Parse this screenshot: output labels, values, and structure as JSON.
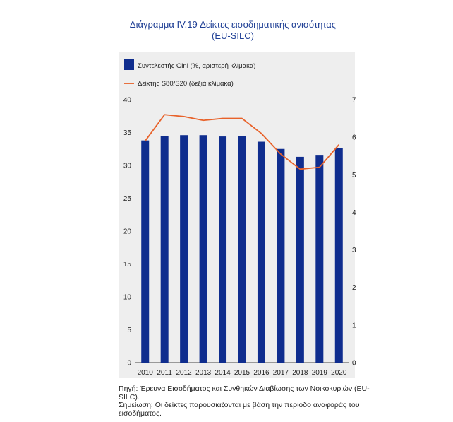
{
  "title": {
    "line1": "Διάγραμμα IV.19 Δείκτες εισοδηματικής ανισότητας",
    "line2": "(EU-SILC)"
  },
  "chart_data": {
    "type": "bar",
    "categories": [
      "2010",
      "2011",
      "2012",
      "2013",
      "2014",
      "2015",
      "2016",
      "2017",
      "2018",
      "2019",
      "2020"
    ],
    "series": [
      {
        "name": "Συντελεστής Gini (%, αριστερή κλίμακα)",
        "type": "bar",
        "axis": "left",
        "color": "#0f2d8e",
        "values": [
          33.8,
          34.5,
          34.6,
          34.6,
          34.4,
          34.5,
          33.6,
          32.5,
          31.3,
          31.6,
          32.6
        ]
      },
      {
        "name": "Δείκτης S80/S20 (δεξιά κλίμακα)",
        "type": "line",
        "axis": "right",
        "color": "#e8622a",
        "values": [
          5.9,
          6.6,
          6.55,
          6.45,
          6.5,
          6.5,
          6.1,
          5.55,
          5.15,
          5.2,
          5.8
        ]
      }
    ],
    "y_left": {
      "min": 0,
      "max": 40,
      "ticks": [
        "0",
        "5",
        "10",
        "15",
        "20",
        "25",
        "30",
        "35",
        "40"
      ]
    },
    "y_right": {
      "min": 0,
      "max": 7,
      "ticks": [
        "0",
        "1",
        "2",
        "3",
        "4",
        "5",
        "6",
        "7"
      ]
    },
    "legend": "top-left"
  },
  "notes": {
    "source": "Πηγή: Έρευνα Εισοδήματος και Συνθηκών Διαβίωσης των Νοικοκυριών (EU-SILC).",
    "note": "Σημείωση: Οι δείκτες παρουσιάζονται με βάση την περίοδο αναφοράς του εισοδήματος."
  }
}
